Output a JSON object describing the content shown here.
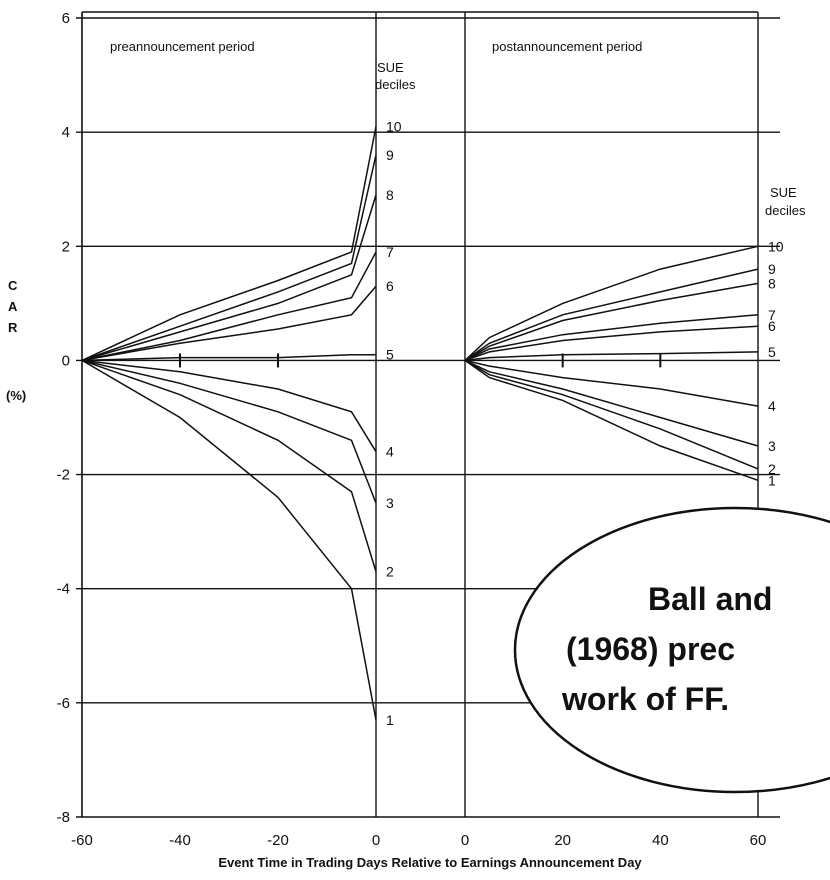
{
  "chart_data": {
    "type": "line",
    "ylabel_letters": [
      "C",
      "A",
      "R"
    ],
    "ylabel_unit": "(%)",
    "xlabel": "Event Time in Trading Days Relative to Earnings Announcement Day",
    "ylim": [
      -8,
      6
    ],
    "y_ticks": [
      "6",
      "4",
      "2",
      "0",
      "-2",
      "-4",
      "-6",
      "-8"
    ],
    "grid": true,
    "panels": [
      {
        "title": "preannouncement period",
        "x_ticks": [
          "-60",
          "-40",
          "-20",
          "0"
        ],
        "xlim": [
          -60,
          0
        ],
        "decile_header": [
          "SUE",
          "deciles"
        ],
        "series": [
          {
            "name": "10",
            "x": [
              -60,
              -40,
              -20,
              -5,
              0
            ],
            "y": [
              0,
              0.8,
              1.4,
              1.9,
              4.1
            ]
          },
          {
            "name": "9",
            "x": [
              -60,
              -40,
              -20,
              -5,
              0
            ],
            "y": [
              0,
              0.6,
              1.2,
              1.7,
              3.6
            ]
          },
          {
            "name": "8",
            "x": [
              -60,
              -40,
              -20,
              -5,
              0
            ],
            "y": [
              0,
              0.5,
              1.0,
              1.5,
              2.9
            ]
          },
          {
            "name": "7",
            "x": [
              -60,
              -40,
              -20,
              -5,
              0
            ],
            "y": [
              0,
              0.35,
              0.8,
              1.1,
              1.9
            ]
          },
          {
            "name": "6",
            "x": [
              -60,
              -40,
              -20,
              -5,
              0
            ],
            "y": [
              0,
              0.3,
              0.55,
              0.8,
              1.3
            ]
          },
          {
            "name": "5",
            "x": [
              -60,
              -40,
              -20,
              -5,
              0
            ],
            "y": [
              0,
              0.05,
              0.05,
              0.1,
              0.1
            ]
          },
          {
            "name": "4",
            "x": [
              -60,
              -40,
              -20,
              -5,
              0
            ],
            "y": [
              0,
              -0.2,
              -0.5,
              -0.9,
              -1.6
            ]
          },
          {
            "name": "3",
            "x": [
              -60,
              -40,
              -20,
              -5,
              0
            ],
            "y": [
              0,
              -0.4,
              -0.9,
              -1.4,
              -2.5
            ]
          },
          {
            "name": "2",
            "x": [
              -60,
              -40,
              -20,
              -5,
              0
            ],
            "y": [
              0,
              -0.6,
              -1.4,
              -2.3,
              -3.7
            ]
          },
          {
            "name": "1",
            "x": [
              -60,
              -40,
              -20,
              -5,
              0
            ],
            "y": [
              0,
              -1.0,
              -2.4,
              -4.0,
              -6.3
            ]
          }
        ]
      },
      {
        "title": "postannouncement period",
        "x_ticks": [
          "0",
          "20",
          "40",
          "60"
        ],
        "xlim": [
          0,
          60
        ],
        "decile_header": [
          "SUE",
          "deciles"
        ],
        "series": [
          {
            "name": "10",
            "x": [
              0,
              5,
              20,
              40,
              60
            ],
            "y": [
              0,
              0.4,
              1.0,
              1.6,
              2.0
            ]
          },
          {
            "name": "9",
            "x": [
              0,
              5,
              20,
              40,
              60
            ],
            "y": [
              0,
              0.3,
              0.8,
              1.2,
              1.6
            ]
          },
          {
            "name": "8",
            "x": [
              0,
              5,
              20,
              40,
              60
            ],
            "y": [
              0,
              0.25,
              0.7,
              1.05,
              1.35
            ]
          },
          {
            "name": "7",
            "x": [
              0,
              5,
              20,
              40,
              60
            ],
            "y": [
              0,
              0.2,
              0.45,
              0.65,
              0.8
            ]
          },
          {
            "name": "6",
            "x": [
              0,
              5,
              20,
              40,
              60
            ],
            "y": [
              0,
              0.15,
              0.35,
              0.5,
              0.6
            ]
          },
          {
            "name": "5",
            "x": [
              0,
              5,
              20,
              40,
              60
            ],
            "y": [
              0,
              0.05,
              0.1,
              0.12,
              0.15
            ]
          },
          {
            "name": "4",
            "x": [
              0,
              5,
              20,
              40,
              60
            ],
            "y": [
              0,
              -0.1,
              -0.3,
              -0.5,
              -0.8
            ]
          },
          {
            "name": "3",
            "x": [
              0,
              5,
              20,
              40,
              60
            ],
            "y": [
              0,
              -0.2,
              -0.5,
              -1.0,
              -1.5
            ]
          },
          {
            "name": "2",
            "x": [
              0,
              5,
              20,
              40,
              60
            ],
            "y": [
              0,
              -0.25,
              -0.6,
              -1.2,
              -1.9
            ]
          },
          {
            "name": "1",
            "x": [
              0,
              5,
              20,
              40,
              60
            ],
            "y": [
              0,
              -0.3,
              -0.7,
              -1.5,
              -2.1
            ]
          }
        ]
      }
    ]
  },
  "callout": {
    "lines": [
      "Ball and",
      "(1968) prec",
      "work of FF."
    ]
  },
  "colors": {
    "ink": "#111111",
    "background": "#ffffff"
  }
}
